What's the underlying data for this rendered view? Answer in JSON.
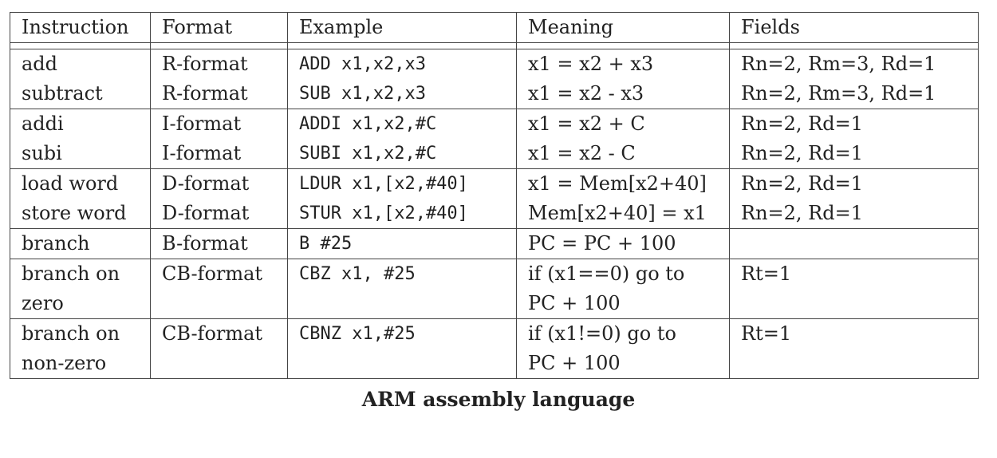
{
  "headers": [
    "Instruction",
    "Format",
    "Example",
    "Meaning",
    "Fields"
  ],
  "groups": [
    [
      {
        "instruction": "add",
        "format": "R-format",
        "example": "ADD x1,x2,x3",
        "meaning": "x1 = x2 + x3",
        "fields": "Rn=2, Rm=3, Rd=1"
      },
      {
        "instruction": "subtract",
        "format": "R-format",
        "example": "SUB x1,x2,x3",
        "meaning": "x1 = x2 - x3",
        "fields": "Rn=2, Rm=3, Rd=1"
      }
    ],
    [
      {
        "instruction": "addi",
        "format": "I-format",
        "example": "ADDI x1,x2,#C",
        "meaning": "x1 = x2 + C",
        "fields": "Rn=2, Rd=1"
      },
      {
        "instruction": "subi",
        "format": "I-format",
        "example": "SUBI x1,x2,#C",
        "meaning": "x1 = x2 - C",
        "fields": "Rn=2, Rd=1"
      }
    ],
    [
      {
        "instruction": "load word",
        "format": "D-format",
        "example": "LDUR x1,[x2,#40]",
        "meaning": "x1 = Mem[x2+40]",
        "fields": "Rn=2, Rd=1"
      },
      {
        "instruction": "store word",
        "format": "D-format",
        "example": "STUR x1,[x2,#40]",
        "meaning": "Mem[x2+40] = x1",
        "fields": "Rn=2, Rd=1"
      }
    ],
    [
      {
        "instruction": "branch",
        "format": "B-format",
        "example": "B #25",
        "meaning": "PC = PC + 100",
        "fields": ""
      }
    ],
    [
      {
        "instruction": "branch on",
        "format": "CB-format",
        "example": "CBZ x1, #25",
        "meaning": "if (x1==0) go to",
        "fields": "Rt=1"
      },
      {
        "instruction": "zero",
        "format": "",
        "example": "",
        "meaning": "PC + 100",
        "fields": ""
      }
    ],
    [
      {
        "instruction": "branch on",
        "format": "CB-format",
        "example": "CBNZ x1,#25",
        "meaning": "if (x1!=0) go to",
        "fields": "Rt=1"
      },
      {
        "instruction": "non-zero",
        "format": "",
        "example": "",
        "meaning": "PC + 100",
        "fields": ""
      }
    ]
  ],
  "caption": "ARM assembly language"
}
